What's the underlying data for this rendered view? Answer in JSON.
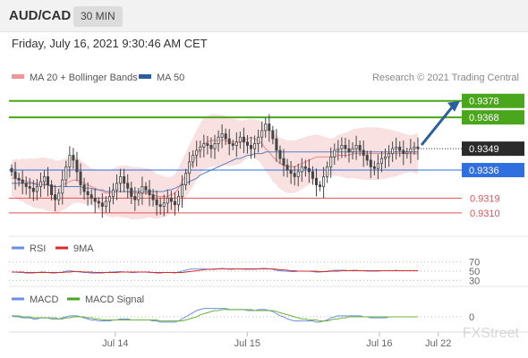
{
  "header": {
    "pair": "AUD/CAD",
    "timeframe": "30 MIN",
    "timestamp": "Friday, July 16, 2021 9:30:46 AM CET"
  },
  "legend": {
    "ma20_label": "MA 20 + Bollinger Bands",
    "ma50_label": "MA 50",
    "credit": "Research © 2021 Trading Central",
    "rsi_label": "RSI",
    "rsi_ma_label": "9MA",
    "macd_label": "MACD",
    "macd_signal_label": "MACD Signal"
  },
  "colors": {
    "green": "#4aa61a",
    "blue": "#2f6fe0",
    "red": "#e35252",
    "band": "#f8d7d7",
    "candle": "#444444",
    "arrow": "#2c5f9e",
    "ma50": "#5a7fbf",
    "macd": "#6b8fe0",
    "signal": "#6cb23a"
  },
  "watermark": "FXStreet",
  "chart_data": [
    {
      "type": "candlestick",
      "title": "AUD/CAD",
      "timeframe": "30 MIN",
      "ylim": [
        0.9298,
        0.9386
      ],
      "x_ticks": [
        "Jul 14",
        "Jul 15",
        "Jul 16",
        "Jul 22"
      ],
      "last_price": 0.9349,
      "levels": [
        {
          "value": 0.9378,
          "label": "0.9378",
          "kind": "resistance",
          "color": "green"
        },
        {
          "value": 0.9368,
          "label": "0.9368",
          "kind": "resistance",
          "color": "green"
        },
        {
          "value": 0.9336,
          "label": "0.9336",
          "kind": "pivot",
          "color": "blue"
        },
        {
          "value": 0.9319,
          "label": "0.9319",
          "kind": "support",
          "color": "red"
        },
        {
          "value": 0.931,
          "label": "0.9310",
          "kind": "support",
          "color": "red"
        }
      ],
      "candles_close": [
        0.9335,
        0.9331,
        0.933,
        0.9328,
        0.9326,
        0.9325,
        0.9323,
        0.9326,
        0.9329,
        0.9332,
        0.9327,
        0.9321,
        0.9318,
        0.9322,
        0.933,
        0.9338,
        0.9345,
        0.9342,
        0.9335,
        0.9327,
        0.9323,
        0.9321,
        0.9319,
        0.9317,
        0.9316,
        0.9314,
        0.9317,
        0.932,
        0.9324,
        0.9328,
        0.9332,
        0.9328,
        0.9325,
        0.932,
        0.9318,
        0.9322,
        0.9326,
        0.9324,
        0.9321,
        0.9318,
        0.9315,
        0.9314,
        0.9316,
        0.9319,
        0.9317,
        0.9315,
        0.932,
        0.9327,
        0.9334,
        0.9341,
        0.9345,
        0.9348,
        0.935,
        0.9352,
        0.9351,
        0.9349,
        0.9352,
        0.9356,
        0.9358,
        0.9355,
        0.9352,
        0.9351,
        0.9353,
        0.9356,
        0.9353,
        0.9351,
        0.9349,
        0.9352,
        0.9356,
        0.936,
        0.9364,
        0.936,
        0.9355,
        0.9348,
        0.9343,
        0.9339,
        0.9336,
        0.9334,
        0.9332,
        0.9335,
        0.9338,
        0.9337,
        0.9335,
        0.9331,
        0.9327,
        0.9326,
        0.9332,
        0.9338,
        0.9344,
        0.9348,
        0.9349,
        0.9351,
        0.9349,
        0.9347,
        0.9349,
        0.9351,
        0.9348,
        0.9345,
        0.9342,
        0.9338,
        0.9337,
        0.934,
        0.9343,
        0.9344,
        0.9346,
        0.9349,
        0.935,
        0.9348,
        0.9346,
        0.9347,
        0.9349,
        0.935,
        0.9349
      ],
      "ma20": [
        0.9331,
        0.9331,
        0.933,
        0.933,
        0.9329,
        0.9329,
        0.9328,
        0.9328,
        0.9328,
        0.9328,
        0.9327,
        0.9327,
        0.9326,
        0.9326,
        0.9327,
        0.9328,
        0.9329,
        0.933,
        0.933,
        0.9329,
        0.9328,
        0.9327,
        0.9326,
        0.9325,
        0.9324,
        0.9323,
        0.9322,
        0.9322,
        0.9322,
        0.9323,
        0.9323,
        0.9323,
        0.9323,
        0.9322,
        0.9322,
        0.9322,
        0.9322,
        0.9322,
        0.9322,
        0.9321,
        0.932,
        0.932,
        0.932,
        0.932,
        0.9321,
        0.9322,
        0.9325,
        0.9329,
        0.9333,
        0.9337,
        0.9341,
        0.9345,
        0.9349,
        0.9352,
        0.9353,
        0.9354,
        0.9354,
        0.9354,
        0.9354,
        0.9354,
        0.9353,
        0.9353,
        0.9353,
        0.9353,
        0.9354,
        0.9355,
        0.9356,
        0.9355,
        0.9354,
        0.9352,
        0.9349,
        0.9347,
        0.9344,
        0.9342,
        0.934,
        0.9339,
        0.9338,
        0.9338,
        0.9338,
        0.9339,
        0.934,
        0.9341,
        0.9342,
        0.9343,
        0.9344,
        0.9344,
        0.9344,
        0.9344,
        0.9344,
        0.9344,
        0.9345,
        0.9345,
        0.9345,
        0.9345,
        0.9346,
        0.9346,
        0.9346,
        0.9346,
        0.9346,
        0.9346,
        0.9346,
        0.9346,
        0.9346,
        0.9346,
        0.9346,
        0.9346,
        0.9346,
        0.9346,
        0.9346,
        0.9346,
        0.9346,
        0.9346,
        0.9346
      ],
      "ma50": [
        0.9328,
        0.9328,
        0.9328,
        0.9328,
        0.9328,
        0.9328,
        0.9328,
        0.9327,
        0.9327,
        0.9327,
        0.9327,
        0.9326,
        0.9326,
        0.9326,
        0.9326,
        0.9326,
        0.9326,
        0.9326,
        0.9326,
        0.9326,
        0.9325,
        0.9325,
        0.9325,
        0.9324,
        0.9324,
        0.9324,
        0.9323,
        0.9323,
        0.9323,
        0.9323,
        0.9323,
        0.9323,
        0.9323,
        0.9323,
        0.9323,
        0.9323,
        0.9323,
        0.9323,
        0.9323,
        0.9323,
        0.9323,
        0.9323,
        0.9323,
        0.9324,
        0.9324,
        0.9325,
        0.9326,
        0.9327,
        0.9328,
        0.9329,
        0.933,
        0.9331,
        0.9333,
        0.9334,
        0.9335,
        0.9336,
        0.9337,
        0.9338,
        0.9339,
        0.934,
        0.9341,
        0.9342,
        0.9343,
        0.9343,
        0.9344,
        0.9345,
        0.9345,
        0.9346,
        0.9346,
        0.9346,
        0.9347,
        0.9347,
        0.9347,
        0.9347,
        0.9347,
        0.9347,
        0.9347,
        0.9347,
        0.9347,
        0.9347,
        0.9347,
        0.9347,
        0.9347,
        0.9347,
        0.9347,
        0.9347,
        0.9347,
        0.9347,
        0.9347,
        0.9347,
        0.9347,
        0.9347,
        0.9347,
        0.9347,
        0.9347,
        0.9347,
        0.9347,
        0.9347,
        0.9347,
        0.9347,
        0.9347,
        0.9347,
        0.9347,
        0.9347,
        0.9347,
        0.9347,
        0.9347,
        0.9347,
        0.9347,
        0.9347,
        0.9347,
        0.9347,
        0.9347
      ],
      "series": [
        {
          "name": "MA 20 + Bollinger Bands"
        },
        {
          "name": "MA 50"
        }
      ]
    },
    {
      "type": "line",
      "name": "RSI",
      "ylim": [
        25,
        75
      ],
      "y_ticks": [
        70,
        50,
        30
      ],
      "series": [
        {
          "name": "RSI",
          "values": [
            48,
            48,
            47,
            47,
            46,
            46,
            46,
            47,
            48,
            48,
            47,
            46,
            46,
            47,
            48,
            50,
            51,
            50,
            49,
            48,
            47,
            47,
            46,
            46,
            46,
            46,
            47,
            48,
            48,
            49,
            49,
            48,
            48,
            47,
            47,
            48,
            48,
            48,
            47,
            47,
            46,
            46,
            47,
            47,
            47,
            46,
            48,
            50,
            52,
            54,
            55,
            55,
            55,
            55,
            54,
            54,
            55,
            55,
            56,
            55,
            54,
            54,
            55,
            55,
            54,
            54,
            54,
            54,
            55,
            56,
            56,
            55,
            54,
            52,
            51,
            50,
            50,
            49,
            49,
            50,
            50,
            50,
            50,
            49,
            48,
            48,
            49,
            50,
            51,
            52,
            52,
            52,
            52,
            51,
            52,
            52,
            51,
            51,
            50,
            50,
            50,
            50,
            51,
            51,
            51,
            51,
            52,
            51,
            51,
            51,
            51,
            51,
            51
          ]
        },
        {
          "name": "9MA",
          "values": [
            48,
            48,
            48,
            48,
            47,
            47,
            47,
            47,
            47,
            47,
            47,
            47,
            47,
            47,
            47,
            48,
            48,
            49,
            49,
            49,
            48,
            48,
            48,
            47,
            47,
            47,
            47,
            47,
            47,
            47,
            48,
            48,
            48,
            48,
            48,
            48,
            48,
            48,
            48,
            47,
            47,
            47,
            47,
            47,
            47,
            47,
            47,
            47,
            48,
            49,
            50,
            51,
            52,
            53,
            54,
            54,
            54,
            55,
            55,
            55,
            55,
            55,
            55,
            55,
            55,
            55,
            55,
            55,
            55,
            55,
            55,
            55,
            55,
            54,
            53,
            53,
            52,
            51,
            51,
            50,
            50,
            50,
            50,
            50,
            50,
            49,
            49,
            49,
            50,
            50,
            50,
            51,
            51,
            51,
            51,
            51,
            51,
            51,
            51,
            51,
            51,
            51,
            51,
            51,
            51,
            51,
            51,
            51,
            51,
            51,
            51,
            51,
            51
          ]
        }
      ]
    },
    {
      "type": "line",
      "name": "MACD",
      "ylim": [
        -0.0012,
        0.0012
      ],
      "y_ticks": [
        0
      ],
      "series": [
        {
          "name": "MACD",
          "values": [
            0.0001,
            0.0,
            0.0,
            -0.0001,
            -0.0001,
            -0.0001,
            -0.0002,
            -0.0002,
            -0.0001,
            -0.0001,
            -0.0001,
            -0.0002,
            -0.0002,
            -0.0002,
            -0.0001,
            0.0,
            0.0001,
            0.0001,
            0.0001,
            0.0,
            -0.0001,
            -0.0002,
            -0.0003,
            -0.0003,
            -0.0004,
            -0.0004,
            -0.0004,
            -0.0004,
            -0.0003,
            -0.0003,
            -0.0002,
            -0.0002,
            -0.0002,
            -0.0003,
            -0.0003,
            -0.0003,
            -0.0003,
            -0.0003,
            -0.0003,
            -0.0004,
            -0.0004,
            -0.0005,
            -0.0005,
            -0.0005,
            -0.0005,
            -0.0005,
            -0.0004,
            -0.0002,
            0.0,
            0.0002,
            0.0004,
            0.0006,
            0.0007,
            0.0008,
            0.0008,
            0.0008,
            0.0008,
            0.0008,
            0.0008,
            0.0008,
            0.0007,
            0.0007,
            0.0007,
            0.0007,
            0.0007,
            0.0006,
            0.0006,
            0.0006,
            0.0007,
            0.0007,
            0.0007,
            0.0006,
            0.0005,
            0.0003,
            0.0001,
            0.0,
            -0.0002,
            -0.0003,
            -0.0004,
            -0.0004,
            -0.0004,
            -0.0004,
            -0.0004,
            -0.0004,
            -0.0005,
            -0.0005,
            -0.0004,
            -0.0003,
            -0.0001,
            0.0,
            0.0001,
            0.0001,
            0.0001,
            0.0001,
            0.0001,
            0.0001,
            0.0001,
            0.0,
            0.0,
            -0.0001,
            -0.0001,
            -0.0001,
            -0.0001,
            -0.0001,
            0.0,
            0.0,
            0.0,
            0.0,
            0.0,
            0.0,
            0.0,
            0.0,
            0.0
          ]
        },
        {
          "name": "MACD Signal",
          "values": [
            0.0001,
            0.0001,
            0.0001,
            0.0,
            0.0,
            0.0,
            -0.0001,
            -0.0001,
            -0.0001,
            -0.0001,
            -0.0001,
            -0.0001,
            -0.0001,
            -0.0002,
            -0.0002,
            -0.0001,
            -0.0001,
            0.0,
            0.0,
            0.0,
            0.0,
            -0.0001,
            -0.0001,
            -0.0002,
            -0.0002,
            -0.0003,
            -0.0003,
            -0.0003,
            -0.0003,
            -0.0003,
            -0.0003,
            -0.0003,
            -0.0003,
            -0.0003,
            -0.0003,
            -0.0003,
            -0.0003,
            -0.0003,
            -0.0003,
            -0.0003,
            -0.0003,
            -0.0004,
            -0.0004,
            -0.0004,
            -0.0004,
            -0.0004,
            -0.0004,
            -0.0004,
            -0.0003,
            -0.0002,
            -0.0001,
            0.0,
            0.0002,
            0.0003,
            0.0004,
            0.0005,
            0.0006,
            0.0006,
            0.0007,
            0.0007,
            0.0007,
            0.0007,
            0.0007,
            0.0007,
            0.0007,
            0.0007,
            0.0007,
            0.0006,
            0.0006,
            0.0006,
            0.0006,
            0.0006,
            0.0006,
            0.0005,
            0.0004,
            0.0003,
            0.0002,
            0.0001,
            0.0,
            -0.0001,
            -0.0002,
            -0.0002,
            -0.0003,
            -0.0003,
            -0.0003,
            -0.0004,
            -0.0004,
            -0.0004,
            -0.0003,
            -0.0002,
            -0.0002,
            -0.0001,
            -0.0001,
            0.0,
            0.0,
            0.0,
            0.0,
            0.0,
            0.0,
            0.0,
            0.0,
            0.0,
            0.0,
            0.0,
            0.0,
            0.0,
            0.0,
            0.0,
            0.0,
            0.0,
            0.0,
            0.0,
            0.0
          ]
        }
      ]
    }
  ]
}
